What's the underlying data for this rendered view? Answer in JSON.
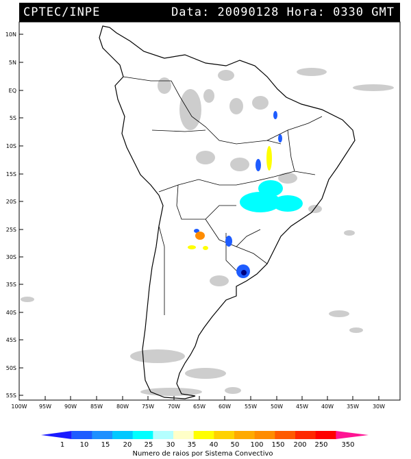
{
  "header": {
    "agency": "CPTEC/INPE",
    "date_label": "Data:",
    "date_value": "20090128",
    "time_label": "Hora:",
    "time_value": "0330",
    "timezone": "GMT"
  },
  "map": {
    "lat_labels": [
      "10N",
      "5N",
      "EQ",
      "5S",
      "10S",
      "15S",
      "20S",
      "25S",
      "30S",
      "35S",
      "40S",
      "45S",
      "50S",
      "55S"
    ],
    "lon_labels": [
      "100W",
      "95W",
      "90W",
      "85W",
      "80W",
      "75W",
      "70W",
      "65W",
      "60W",
      "55W",
      "50W",
      "45W",
      "40W",
      "35W",
      "30W"
    ],
    "colors": {
      "coastline": "#000000",
      "cloud": "#c8c8c8",
      "background": "#ffffff"
    }
  },
  "legend": {
    "values": [
      "1",
      "10",
      "15",
      "20",
      "25",
      "30",
      "35",
      "40",
      "50",
      "100",
      "150",
      "200",
      "250",
      "350"
    ],
    "colors": [
      "#1a1aff",
      "#1e5cff",
      "#1e90ff",
      "#00c8ff",
      "#00ffff",
      "#b4ffff",
      "#ffffc8",
      "#ffff00",
      "#ffd200",
      "#ffaa00",
      "#ff8c00",
      "#ff5a00",
      "#ff2800",
      "#ff0000",
      "#ff1493"
    ],
    "caption": "Numero de raios por Sistema Convectivo"
  }
}
